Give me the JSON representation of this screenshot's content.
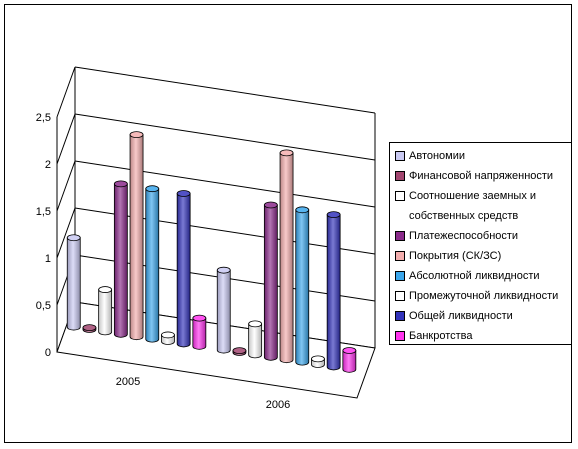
{
  "chart_data": {
    "type": "bar",
    "categories": [
      "2005",
      "2006"
    ],
    "yticks": [
      "0",
      "0,5",
      "1",
      "1,5",
      "2",
      "2,5"
    ],
    "ylim": [
      0,
      2.5
    ],
    "grid": true,
    "legend_position": "right",
    "series": [
      {
        "name": "Автономии",
        "values": [
          0.95,
          0.85
        ],
        "color": "#c9c9f2"
      },
      {
        "name": "Финансовой напряженности",
        "values": [
          0.02,
          0.02
        ],
        "color": "#a2456f"
      },
      {
        "name": "Соотношение заемных и собственных средств",
        "values": [
          0.45,
          0.33
        ],
        "color": "#ffffff"
      },
      {
        "name": "Платежеспособности",
        "values": [
          1.6,
          1.62
        ],
        "color": "#8a2a8a"
      },
      {
        "name": "Покрытия (СК/ЗС)",
        "values": [
          2.15,
          2.2
        ],
        "color": "#f4aeae"
      },
      {
        "name": "Абсолютной ликвидности",
        "values": [
          1.6,
          1.62
        ],
        "color": "#3ba7ec"
      },
      {
        "name": "Промежуточной ликвидности",
        "values": [
          0.07,
          0.06
        ],
        "color": "#ffffff"
      },
      {
        "name": "Общей ликвидности",
        "values": [
          1.6,
          1.62
        ],
        "color": "#3333bb"
      },
      {
        "name": "Банкротства",
        "values": [
          0.3,
          0.2
        ],
        "color": "#ff33ee"
      }
    ]
  },
  "legend": {
    "items": [
      {
        "label": "Автономии",
        "color": "#c9c9f2"
      },
      {
        "label": "Финансовой напряженности",
        "color": "#a2456f"
      },
      {
        "label": "Соотношение заемных и",
        "color": "#ffffff"
      },
      {
        "label": "собственных средств",
        "color": ""
      },
      {
        "label": "Платежеспособности",
        "color": "#8a2a8a"
      },
      {
        "label": "Покрытия (СК/ЗС)",
        "color": "#f4aeae"
      },
      {
        "label": "Абсолютной ликвидности",
        "color": "#3ba7ec"
      },
      {
        "label": "Промежуточной ликвидности",
        "color": "#ffffff"
      },
      {
        "label": "Общей ликвидности",
        "color": "#3333bb"
      },
      {
        "label": "Банкротства",
        "color": "#ff33ee"
      }
    ]
  }
}
